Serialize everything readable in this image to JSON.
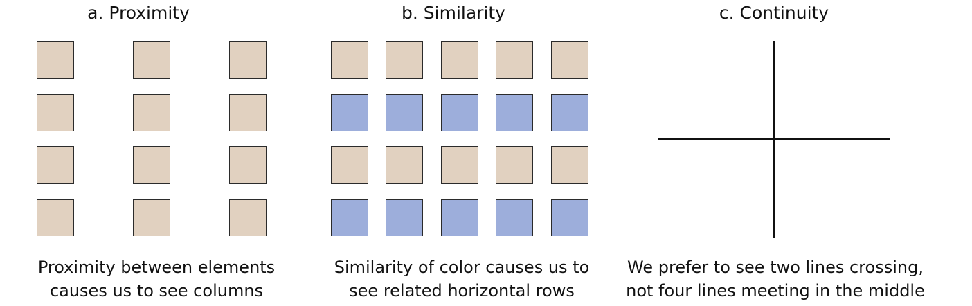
{
  "panels": [
    {
      "title": "a.  Proximity",
      "caption_lines": [
        "Proximity between elements",
        "causes us to see columns"
      ]
    },
    {
      "title": "b.  Similarity",
      "caption_lines": [
        "Similarity of color causes us to",
        "see related horizontal rows"
      ]
    },
    {
      "title": "c.  Continuity",
      "caption_lines": [
        "We prefer to see two lines crossing,",
        "not four lines meeting in the middle"
      ]
    }
  ],
  "colors": {
    "tan": "#e1d1c0",
    "blue": "#9daedb",
    "border": "#2b2b2b",
    "line": "#111111"
  },
  "proximity_grid": {
    "rows": 4,
    "columns": 3
  },
  "similarity_grid": {
    "row_colors": [
      "tan",
      "blue",
      "tan",
      "blue"
    ],
    "columns": 5
  }
}
